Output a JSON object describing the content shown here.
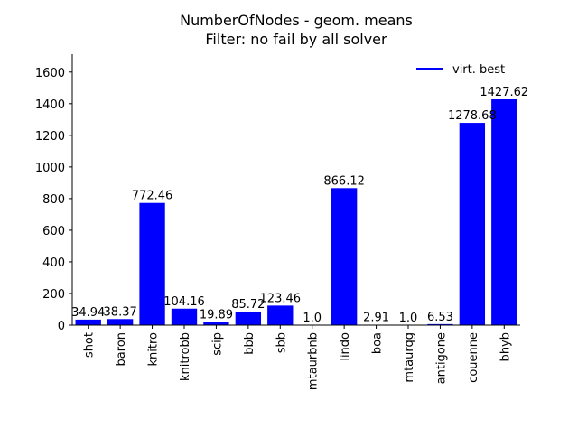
{
  "chart_data": {
    "type": "bar",
    "title": "NumberOfNodes - geom. means",
    "subtitle": "Filter: no fail by all solver",
    "xlabel": "",
    "ylabel": "",
    "ylim": [
      0,
      1713
    ],
    "yticks": [
      "0",
      "200",
      "400",
      "600",
      "800",
      "1000",
      "1200",
      "1400",
      "1600"
    ],
    "grid": false,
    "legend_position": "top-right",
    "categories": [
      "shot",
      "baron",
      "knitro",
      "knitrobb",
      "scip",
      "bbb",
      "sbb",
      "mtaurbnb",
      "lindo",
      "boa",
      "mtaurqg",
      "antigone",
      "couenne",
      "bhyb"
    ],
    "values": [
      34.94,
      38.37,
      772.46,
      104.16,
      19.89,
      85.72,
      123.46,
      1.0,
      866.12,
      2.91,
      1.0,
      6.53,
      1278.68,
      1427.62
    ],
    "value_labels": [
      "34.94",
      "38.37",
      "772.46",
      "104.16",
      "19.89",
      "85.72",
      "123.46",
      "1.0",
      "866.12",
      "2.91",
      "1.0",
      "6.53",
      "1278.68",
      "1427.62"
    ],
    "series": [
      {
        "name": "virt. best",
        "values": [
          34.94,
          38.37,
          772.46,
          104.16,
          19.89,
          85.72,
          123.46,
          1.0,
          866.12,
          2.91,
          1.0,
          6.53,
          1278.68,
          1427.62
        ]
      }
    ],
    "colors": {
      "bar": "#0000ff",
      "legend_line": "#0000ff"
    }
  }
}
